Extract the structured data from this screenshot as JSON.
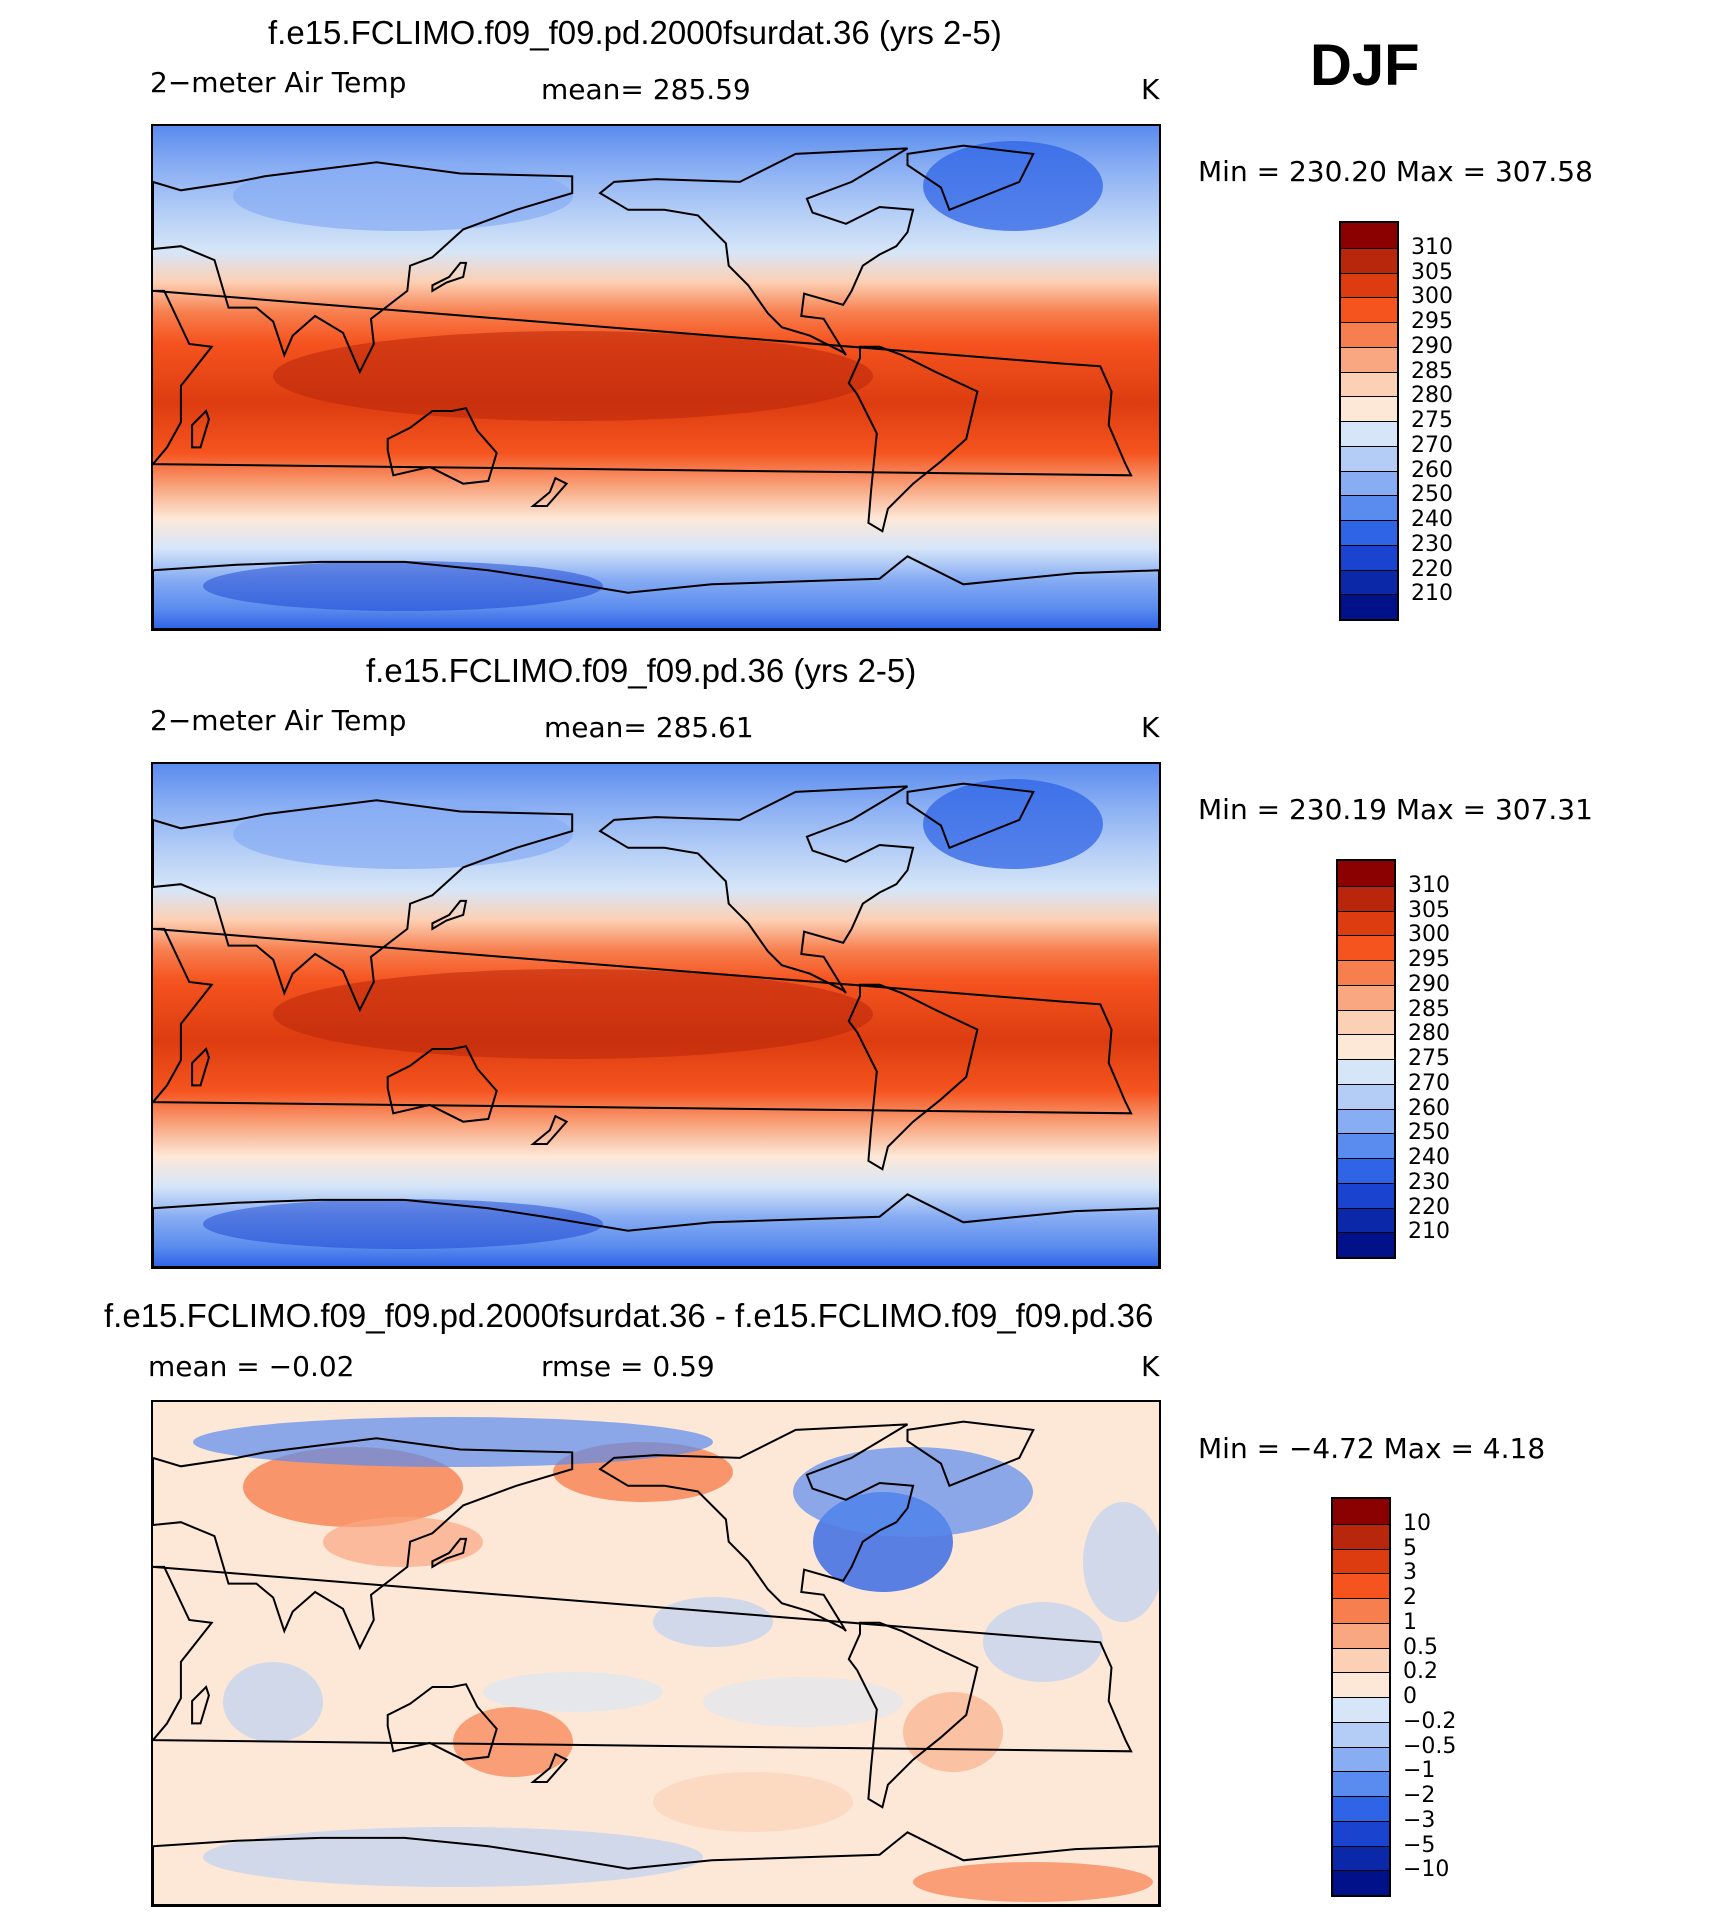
{
  "season": "DJF",
  "panels": [
    {
      "title": "f.e15.FCLIMO.f09_f09.pd.2000fsurdat.36 (yrs 2-5)",
      "left_label": "2−meter Air Temp",
      "center_label": "mean=  285.59",
      "units": "K",
      "minmax": "Min  =  230.20  Max  =  307.58",
      "kind": "abs"
    },
    {
      "title": "f.e15.FCLIMO.f09_f09.pd.36 (yrs 2-5)",
      "left_label": "2−meter Air Temp",
      "center_label": "mean=  285.61",
      "units": "K",
      "minmax": "Min  =  230.19  Max  =  307.31",
      "kind": "abs"
    },
    {
      "title": "f.e15.FCLIMO.f09_f09.pd.2000fsurdat.36 - f.e15.FCLIMO.f09_f09.pd.36",
      "left_label": "mean  =    −0.02",
      "center_label": "rmse  =      0.59",
      "units": "K",
      "minmax": "Min  =     −4.72  Max  =      4.18",
      "kind": "diff"
    }
  ],
  "chart_data": [
    {
      "type": "heatmap",
      "title": "f.e15.FCLIMO.f09_f09.pd.2000fsurdat.36 (yrs 2-5)",
      "variable": "2-meter Air Temp",
      "units": "K",
      "mean": 285.59,
      "min": 230.2,
      "max": 307.58,
      "colorbar_levels": [
        "310",
        "305",
        "300",
        "295",
        "290",
        "285",
        "280",
        "275",
        "270",
        "260",
        "250",
        "240",
        "230",
        "220",
        "210"
      ],
      "colorbar_colors": [
        "#8b0000",
        "#b8260b",
        "#dd3c10",
        "#f5541f",
        "#f77f4f",
        "#f9a781",
        "#fcd0b4",
        "#fde8d8",
        "#d6e6f8",
        "#b3cdf6",
        "#88adf3",
        "#5a8bee",
        "#2f64e6",
        "#1a44d0",
        "#0a28a8",
        "#00118a"
      ]
    },
    {
      "type": "heatmap",
      "title": "f.e15.FCLIMO.f09_f09.pd.36 (yrs 2-5)",
      "variable": "2-meter Air Temp",
      "units": "K",
      "mean": 285.61,
      "min": 230.19,
      "max": 307.31,
      "colorbar_levels": [
        "310",
        "305",
        "300",
        "295",
        "290",
        "285",
        "280",
        "275",
        "270",
        "260",
        "250",
        "240",
        "230",
        "220",
        "210"
      ],
      "colorbar_colors": [
        "#8b0000",
        "#b8260b",
        "#dd3c10",
        "#f5541f",
        "#f77f4f",
        "#f9a781",
        "#fcd0b4",
        "#fde8d8",
        "#d6e6f8",
        "#b3cdf6",
        "#88adf3",
        "#5a8bee",
        "#2f64e6",
        "#1a44d0",
        "#0a28a8",
        "#00118a"
      ]
    },
    {
      "type": "heatmap",
      "title": "f.e15.FCLIMO.f09_f09.pd.2000fsurdat.36 - f.e15.FCLIMO.f09_f09.pd.36",
      "units": "K",
      "mean": -0.02,
      "rmse": 0.59,
      "min": -4.72,
      "max": 4.18,
      "colorbar_levels": [
        "10",
        "5",
        "3",
        "2",
        "1",
        "0.5",
        "0.2",
        "0",
        "−0.2",
        "−0.5",
        "−1",
        "−2",
        "−3",
        "−5",
        "−10"
      ],
      "colorbar_colors": [
        "#8b0000",
        "#b8260b",
        "#dd3c10",
        "#f5541f",
        "#f77f4f",
        "#f9a781",
        "#fcd0b4",
        "#fde8d8",
        "#d6e6f8",
        "#b3cdf6",
        "#88adf3",
        "#5a8bee",
        "#2f64e6",
        "#1a44d0",
        "#0a28a8",
        "#00118a"
      ]
    }
  ]
}
